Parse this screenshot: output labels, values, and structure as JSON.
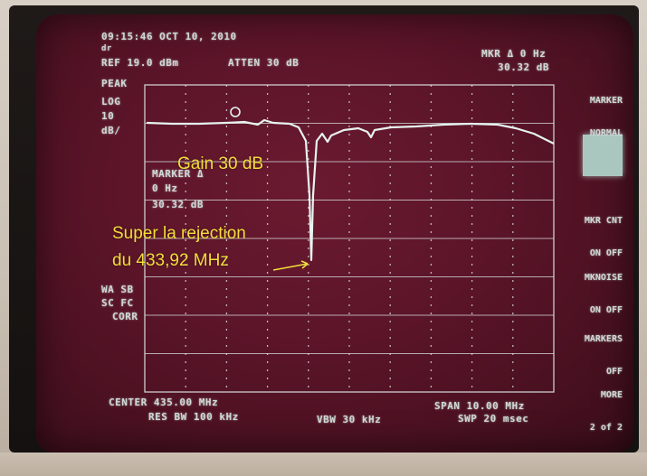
{
  "header": {
    "timestamp": "09:15:46 OCT 10, 2010",
    "ref_prefix": "dr",
    "ref_level": "REF 19.0 dBm",
    "atten": "ATTEN 30 dB",
    "marker_top": "MKR Δ 0 Hz",
    "marker_top_value": "30.32 dB"
  },
  "left_labels": {
    "mode": "PEAK",
    "scale": "LOG",
    "scale_value": "10",
    "scale_unit": "dB/",
    "aux1": "WA SB",
    "aux2": "SC FC",
    "aux3": "CORR"
  },
  "marker_box": {
    "title": "MARKER Δ",
    "freq": "0 Hz",
    "value": "30.32 dB"
  },
  "footer": {
    "center": "CENTER 435.00 MHz",
    "rbw": "RES BW 100 kHz",
    "vbw": "VBW 30 kHz",
    "span": "SPAN 10.00 MHz",
    "sweep": "SWP 20 msec"
  },
  "softkeys": [
    {
      "line1": "MARKER",
      "line2": "NORMAL"
    },
    {
      "line1": "MKR CNT",
      "line2": "ON OFF"
    },
    {
      "line1": "MKNOISE",
      "line2": "ON OFF"
    },
    {
      "line1": "MARKERS",
      "line2": "OFF"
    },
    {
      "line1": "MORE",
      "line2": "2 of 2"
    }
  ],
  "annotations": {
    "gain": "Gain 30 dB",
    "rejection_line1": "Super la rejection",
    "rejection_line2": "du 433,92 MHz"
  },
  "colors": {
    "screen": "#5a1428",
    "trace": "#e6f3ef",
    "grid": "#d8dede",
    "annotation": "#f2dd3a"
  }
}
